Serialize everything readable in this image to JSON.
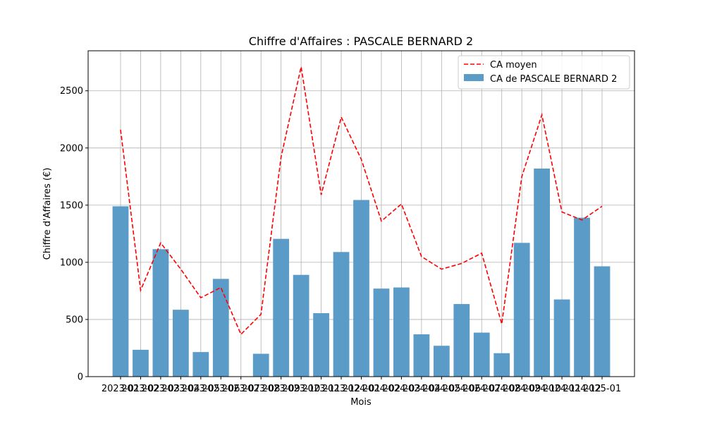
{
  "chart_data": {
    "type": "bar",
    "title": "Chiffre d'Affaires : PASCALE BERNARD 2",
    "xlabel": "Mois",
    "ylabel": "Chiffre d'Affaires (€)",
    "ylim": [
      0,
      2850
    ],
    "yticks": [
      0,
      500,
      1000,
      1500,
      2000,
      2500
    ],
    "grid": true,
    "legend_position": "top-right",
    "categories": [
      "2023-01",
      "2023-02",
      "2023-03",
      "2023-04",
      "2023-05",
      "2023-06",
      "2023-07",
      "2023-08",
      "2023-09",
      "2023-10",
      "2023-11",
      "2023-12",
      "2024-01",
      "2024-02",
      "2024-03",
      "2024-04",
      "2024-05",
      "2024-06",
      "2024-07",
      "2024-08",
      "2024-09",
      "2024-10",
      "2024-11",
      "2024-12",
      "2025-01"
    ],
    "series": [
      {
        "name": "CA de PASCALE BERNARD 2",
        "type": "bar",
        "color": "#5b9bc8",
        "values": [
          1490,
          235,
          1115,
          585,
          215,
          855,
          0,
          200,
          1205,
          890,
          555,
          1090,
          1545,
          770,
          780,
          370,
          270,
          635,
          385,
          205,
          1170,
          1820,
          675,
          1390,
          965
        ]
      },
      {
        "name": "CA moyen",
        "type": "line",
        "style": "dashed",
        "color": "#ff0000",
        "values": [
          2160,
          755,
          1170,
          940,
          690,
          780,
          370,
          545,
          1920,
          2710,
          1590,
          2270,
          1900,
          1360,
          1510,
          1050,
          940,
          990,
          1080,
          460,
          1750,
          2290,
          1440,
          1370,
          1490
        ]
      }
    ]
  }
}
